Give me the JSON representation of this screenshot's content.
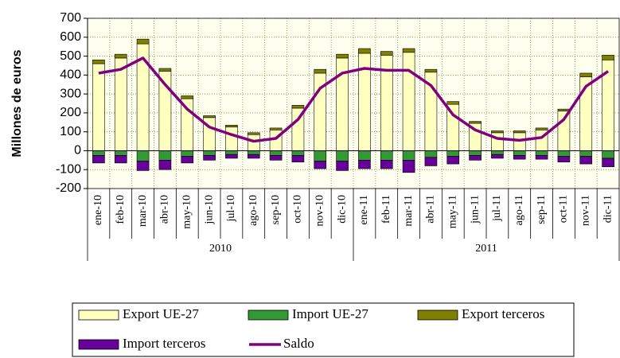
{
  "chart_data": {
    "type": "bar",
    "y_label": "Millones de euros",
    "categories": [
      "ene-10",
      "feb-10",
      "mar-10",
      "abr-10",
      "may-10",
      "jun-10",
      "jul-10",
      "ago-10",
      "sep-10",
      "oct-10",
      "nov-10",
      "dic-10",
      "ene-11",
      "feb-11",
      "mar-11",
      "abr-11",
      "may-11",
      "jun-11",
      "jul-11",
      "ago-11",
      "sep-11",
      "oct-11",
      "nov-11",
      "dic-11"
    ],
    "groups": [
      "2010",
      "2011"
    ],
    "series": [
      {
        "name": "Export UE-27",
        "color": "#ffffc0",
        "kind": "bar",
        "values": [
          460,
          490,
          565,
          420,
          275,
          175,
          125,
          85,
          110,
          225,
          410,
          490,
          515,
          505,
          520,
          415,
          245,
          145,
          95,
          95,
          110,
          210,
          390,
          480
        ]
      },
      {
        "name": "Import UE-27",
        "color": "#339933",
        "kind": "bar",
        "values": [
          -25,
          -25,
          -55,
          -50,
          -30,
          -25,
          -20,
          -20,
          -25,
          -25,
          -55,
          -55,
          -50,
          -50,
          -50,
          -35,
          -30,
          -25,
          -20,
          -25,
          -25,
          -30,
          -30,
          -40
        ]
      },
      {
        "name": "Export terceros",
        "color": "#808000",
        "kind": "bar",
        "values": [
          20,
          20,
          25,
          15,
          15,
          10,
          10,
          10,
          10,
          15,
          20,
          20,
          25,
          20,
          20,
          15,
          15,
          10,
          10,
          10,
          10,
          10,
          20,
          25
        ]
      },
      {
        "name": "Import terceros",
        "color": "#660099",
        "kind": "bar",
        "values": [
          -40,
          -40,
          -50,
          -50,
          -35,
          -25,
          -20,
          -20,
          -25,
          -35,
          -40,
          -50,
          -45,
          -45,
          -65,
          -45,
          -40,
          -25,
          -20,
          -20,
          -20,
          -30,
          -40,
          -45
        ]
      },
      {
        "name": "Saldo",
        "color": "#800080",
        "kind": "line",
        "values": [
          410,
          430,
          490,
          350,
          220,
          125,
          85,
          50,
          65,
          165,
          330,
          410,
          435,
          425,
          425,
          345,
          190,
          110,
          65,
          55,
          70,
          165,
          340,
          420
        ]
      }
    ],
    "ylim": [
      -200,
      700
    ],
    "yticks": [
      -200,
      -100,
      0,
      100,
      200,
      300,
      400,
      500,
      600,
      700
    ],
    "grid": true
  }
}
